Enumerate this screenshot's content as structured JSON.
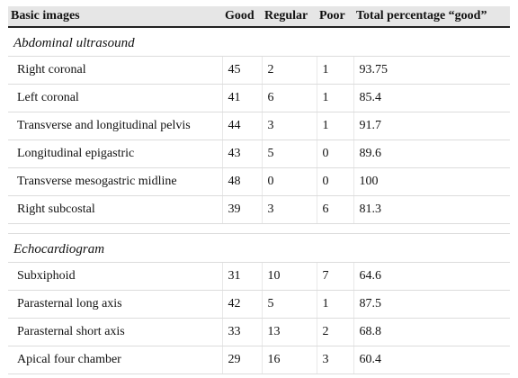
{
  "table": {
    "headers": [
      "Basic images",
      "Good",
      "Regular",
      "Poor",
      "Total percentage “good”"
    ],
    "sections": [
      {
        "title": "Abdominal ultrasound",
        "rows": [
          [
            "Right coronal",
            "45",
            "2",
            "1",
            "93.75"
          ],
          [
            "Left coronal",
            "41",
            "6",
            "1",
            "85.4"
          ],
          [
            "Transverse and longitudinal pelvis",
            "44",
            "3",
            "1",
            "91.7"
          ],
          [
            "Longitudinal epigastric",
            "43",
            "5",
            "0",
            "89.6"
          ],
          [
            "Transverse mesogastric midline",
            "48",
            "0",
            "0",
            "100"
          ],
          [
            "Right subcostal",
            "39",
            "3",
            "6",
            "81.3"
          ]
        ]
      },
      {
        "title": "Echocardiogram",
        "rows": [
          [
            "Subxiphoid",
            "31",
            "10",
            "7",
            "64.6"
          ],
          [
            "Parasternal long axis",
            "42",
            "5",
            "1",
            "87.5"
          ],
          [
            "Parasternal short axis",
            "33",
            "13",
            "2",
            "68.8"
          ],
          [
            "Apical four chamber",
            "29",
            "16",
            "3",
            "60.4"
          ]
        ]
      }
    ]
  }
}
